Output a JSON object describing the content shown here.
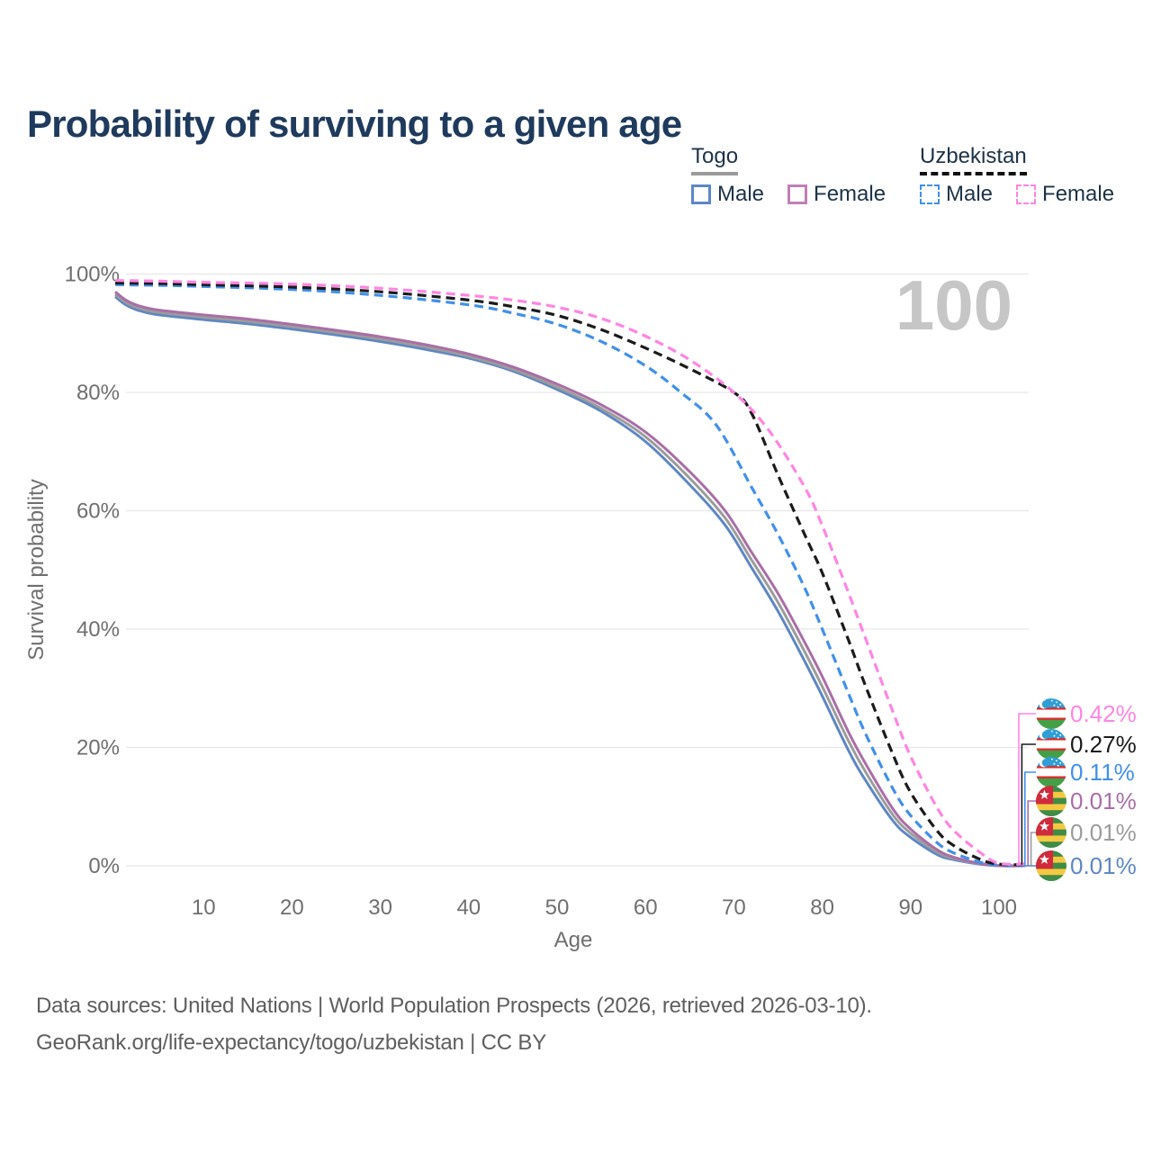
{
  "title": "Probability of surviving to a given age",
  "watermark": "100",
  "legend": {
    "groups": [
      {
        "country": "Togo",
        "line_style": "solid",
        "underline_color": "#9a9a9a",
        "items": [
          {
            "label": "Male",
            "color": "#5b87c5",
            "style": "solid"
          },
          {
            "label": "Female",
            "color": "#c17fb5",
            "style": "solid"
          }
        ]
      },
      {
        "country": "Uzbekistan",
        "line_style": "dashed",
        "underline_color": "#111111",
        "items": [
          {
            "label": "Male",
            "color": "#4190e8",
            "style": "dashed"
          },
          {
            "label": "Female",
            "color": "#ff85e3",
            "style": "dashed"
          }
        ]
      }
    ]
  },
  "chart_data": {
    "type": "line",
    "title": "Probability of surviving to a given age",
    "xlabel": "Age",
    "ylabel": "Survival probability",
    "xlim": [
      0,
      104
    ],
    "ylim": [
      0,
      100
    ],
    "grid": true,
    "x_ticks": [
      10,
      20,
      30,
      40,
      50,
      60,
      70,
      80,
      90,
      100
    ],
    "y_ticks": [
      {
        "value": 0,
        "label": "0%"
      },
      {
        "value": 20,
        "label": "20%"
      },
      {
        "value": 40,
        "label": "40%"
      },
      {
        "value": 60,
        "label": "60%"
      },
      {
        "value": 80,
        "label": "80%"
      },
      {
        "value": 100,
        "label": "100%"
      }
    ],
    "series": [
      {
        "name": "Togo Male",
        "country": "Togo",
        "flag": "tg",
        "sex": "male",
        "color": "#5e87c2",
        "dashed": false,
        "end_label": "0.01%",
        "label_row": 5,
        "points": [
          [
            0,
            96.2
          ],
          [
            1,
            95.0
          ],
          [
            2,
            94.2
          ],
          [
            3,
            93.7
          ],
          [
            5,
            93.1
          ],
          [
            10,
            92.3
          ],
          [
            15,
            91.6
          ],
          [
            20,
            90.7
          ],
          [
            25,
            89.7
          ],
          [
            30,
            88.6
          ],
          [
            35,
            87.3
          ],
          [
            40,
            85.8
          ],
          [
            45,
            83.6
          ],
          [
            50,
            80.5
          ],
          [
            55,
            76.8
          ],
          [
            60,
            71.7
          ],
          [
            65,
            64.4
          ],
          [
            69,
            57.6
          ],
          [
            72,
            50.4
          ],
          [
            75,
            43.0
          ],
          [
            78,
            34.6
          ],
          [
            80,
            28.7
          ],
          [
            83,
            19.4
          ],
          [
            85,
            14.2
          ],
          [
            88,
            7.6
          ],
          [
            90,
            4.8
          ],
          [
            93,
            1.9
          ],
          [
            95,
            1.0
          ],
          [
            98,
            0.25
          ],
          [
            100,
            0.01
          ],
          [
            103,
            0.01
          ]
        ]
      },
      {
        "name": "Togo Both sexes",
        "country": "Togo",
        "flag": "tg",
        "sex": "all",
        "color": "#9c9c9c",
        "dashed": false,
        "end_label": "0.01%",
        "label_row": 4,
        "points": [
          [
            0,
            96.6
          ],
          [
            1,
            95.4
          ],
          [
            2,
            94.6
          ],
          [
            3,
            94.1
          ],
          [
            5,
            93.5
          ],
          [
            10,
            92.7
          ],
          [
            15,
            92.0
          ],
          [
            20,
            91.1
          ],
          [
            25,
            90.1
          ],
          [
            30,
            89.0
          ],
          [
            35,
            87.7
          ],
          [
            40,
            86.1
          ],
          [
            45,
            83.9
          ],
          [
            50,
            80.9
          ],
          [
            55,
            77.3
          ],
          [
            60,
            72.5
          ],
          [
            65,
            65.5
          ],
          [
            69,
            58.8
          ],
          [
            72,
            51.7
          ],
          [
            75,
            44.5
          ],
          [
            78,
            36.2
          ],
          [
            80,
            30.3
          ],
          [
            83,
            21.0
          ],
          [
            85,
            15.6
          ],
          [
            88,
            8.6
          ],
          [
            90,
            5.5
          ],
          [
            93,
            2.3
          ],
          [
            95,
            1.2
          ],
          [
            98,
            0.3
          ],
          [
            100,
            0.01
          ],
          [
            103,
            0.01
          ]
        ]
      },
      {
        "name": "Togo Female",
        "country": "Togo",
        "flag": "tg",
        "sex": "female",
        "color": "#a96ea6",
        "dashed": false,
        "end_label": "0.01%",
        "label_row": 3,
        "points": [
          [
            0,
            97.0
          ],
          [
            1,
            95.8
          ],
          [
            2,
            95.0
          ],
          [
            3,
            94.5
          ],
          [
            5,
            93.9
          ],
          [
            10,
            93.1
          ],
          [
            15,
            92.4
          ],
          [
            20,
            91.5
          ],
          [
            25,
            90.5
          ],
          [
            30,
            89.4
          ],
          [
            35,
            88.1
          ],
          [
            40,
            86.5
          ],
          [
            45,
            84.3
          ],
          [
            50,
            81.4
          ],
          [
            55,
            77.9
          ],
          [
            60,
            73.3
          ],
          [
            65,
            66.6
          ],
          [
            69,
            60.0
          ],
          [
            72,
            53.0
          ],
          [
            75,
            46.0
          ],
          [
            78,
            37.8
          ],
          [
            80,
            32.0
          ],
          [
            83,
            22.5
          ],
          [
            85,
            17.0
          ],
          [
            88,
            9.6
          ],
          [
            90,
            6.2
          ],
          [
            93,
            2.7
          ],
          [
            95,
            1.4
          ],
          [
            98,
            0.35
          ],
          [
            100,
            0.01
          ],
          [
            103,
            0.01
          ]
        ]
      },
      {
        "name": "Uzbekistan Male",
        "country": "Uzbekistan",
        "flag": "uz",
        "sex": "male",
        "color": "#4190e8",
        "dashed": true,
        "end_label": "0.11%",
        "label_row": 2,
        "points": [
          [
            0,
            98.2
          ],
          [
            5,
            98.1
          ],
          [
            10,
            97.9
          ],
          [
            20,
            97.4
          ],
          [
            30,
            96.4
          ],
          [
            40,
            94.8
          ],
          [
            45,
            93.4
          ],
          [
            50,
            91.5
          ],
          [
            55,
            88.6
          ],
          [
            60,
            84.5
          ],
          [
            64,
            80.0
          ],
          [
            68,
            74.5
          ],
          [
            72,
            64.0
          ],
          [
            75,
            56.0
          ],
          [
            78,
            47.0
          ],
          [
            80,
            40.0
          ],
          [
            83,
            29.0
          ],
          [
            85,
            22.0
          ],
          [
            88,
            13.0
          ],
          [
            90,
            8.5
          ],
          [
            93,
            3.9
          ],
          [
            95,
            2.1
          ],
          [
            98,
            0.55
          ],
          [
            100,
            0.11
          ],
          [
            103,
            0.07
          ]
        ]
      },
      {
        "name": "Uzbekistan Both sexes",
        "country": "Uzbekistan",
        "flag": "uz",
        "sex": "all",
        "color": "#1b1b1b",
        "dashed": true,
        "end_label": "0.27%",
        "label_row": 1,
        "points": [
          [
            0,
            98.5
          ],
          [
            5,
            98.4
          ],
          [
            10,
            98.2
          ],
          [
            20,
            97.8
          ],
          [
            30,
            97.0
          ],
          [
            40,
            95.6
          ],
          [
            45,
            94.5
          ],
          [
            50,
            93.0
          ],
          [
            55,
            90.6
          ],
          [
            60,
            87.5
          ],
          [
            65,
            84.0
          ],
          [
            70,
            80.0
          ],
          [
            72,
            76.5
          ],
          [
            75,
            66.0
          ],
          [
            78,
            56.0
          ],
          [
            80,
            49.5
          ],
          [
            83,
            38.0
          ],
          [
            85,
            30.0
          ],
          [
            88,
            18.8
          ],
          [
            90,
            12.4
          ],
          [
            93,
            5.9
          ],
          [
            95,
            3.3
          ],
          [
            98,
            1.0
          ],
          [
            100,
            0.27
          ],
          [
            103,
            0.18
          ]
        ]
      },
      {
        "name": "Uzbekistan Female",
        "country": "Uzbekistan",
        "flag": "uz",
        "sex": "female",
        "color": "#ff85e3",
        "dashed": true,
        "end_label": "0.42%",
        "label_row": 0,
        "points": [
          [
            0,
            98.9
          ],
          [
            5,
            98.8
          ],
          [
            10,
            98.6
          ],
          [
            20,
            98.3
          ],
          [
            30,
            97.6
          ],
          [
            40,
            96.4
          ],
          [
            45,
            95.6
          ],
          [
            50,
            94.4
          ],
          [
            55,
            92.5
          ],
          [
            60,
            89.5
          ],
          [
            65,
            85.5
          ],
          [
            70,
            80.0
          ],
          [
            74,
            73.5
          ],
          [
            78,
            64.0
          ],
          [
            80,
            57.5
          ],
          [
            83,
            46.0
          ],
          [
            85,
            38.0
          ],
          [
            88,
            26.0
          ],
          [
            90,
            18.5
          ],
          [
            93,
            9.8
          ],
          [
            95,
            5.8
          ],
          [
            98,
            2.1
          ],
          [
            100,
            0.42
          ],
          [
            103,
            0.3
          ]
        ]
      }
    ],
    "end_labels": [
      {
        "value": "0.42%",
        "color": "#ff85e3",
        "flag": "uz"
      },
      {
        "value": "0.27%",
        "color": "#1b1b1b",
        "flag": "uz"
      },
      {
        "value": "0.11%",
        "color": "#4190e8",
        "flag": "uz"
      },
      {
        "value": "0.01%",
        "color": "#a96ea6",
        "flag": "tg"
      },
      {
        "value": "0.01%",
        "color": "#9c9c9c",
        "flag": "tg"
      },
      {
        "value": "0.01%",
        "color": "#5e87c2",
        "flag": "tg"
      }
    ],
    "legend_position": "top-right"
  },
  "footer": {
    "line1": "Data sources: United Nations | World Population Prospects (2026, retrieved 2026-03-10).",
    "line2": "GeoRank.org/life-expectancy/togo/uzbekistan | CC BY"
  }
}
